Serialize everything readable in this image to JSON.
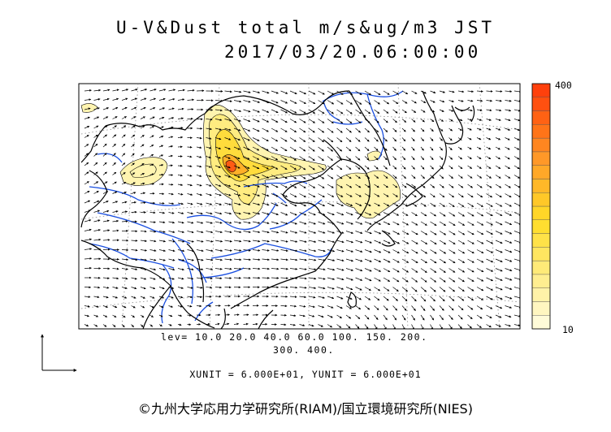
{
  "title": "U-V&Dust total m/s&ug/m3 JST",
  "datetime": "2017/03/20.06:00:00",
  "legend": {
    "levels_line1": "lev= 10.0 20.0 40.0 60.0 100. 150. 200.",
    "levels_line2": "300. 400.",
    "colorbar_max_label": "400",
    "colorbar_min_label": "10",
    "colorbar_colors": [
      "#fffbd8",
      "#fff6c0",
      "#fff2a8",
      "#ffee90",
      "#ffea78",
      "#ffe660",
      "#ffe248",
      "#ffde30",
      "#ffd628",
      "#ffc828",
      "#ffb828",
      "#ffa828",
      "#ff9828",
      "#ff8620",
      "#ff7418",
      "#ff6214",
      "#ff5010",
      "#ff400c"
    ]
  },
  "units": "XUNIT = 6.000E+01, YUNIT = 6.000E+01",
  "credit": "©九州大学応用力学研究所(RIAM)/国立環境研究所(NIES)",
  "colors": {
    "coastline": "#000000",
    "river": "#1a4fe0",
    "wind_arrow": "#000000"
  }
}
